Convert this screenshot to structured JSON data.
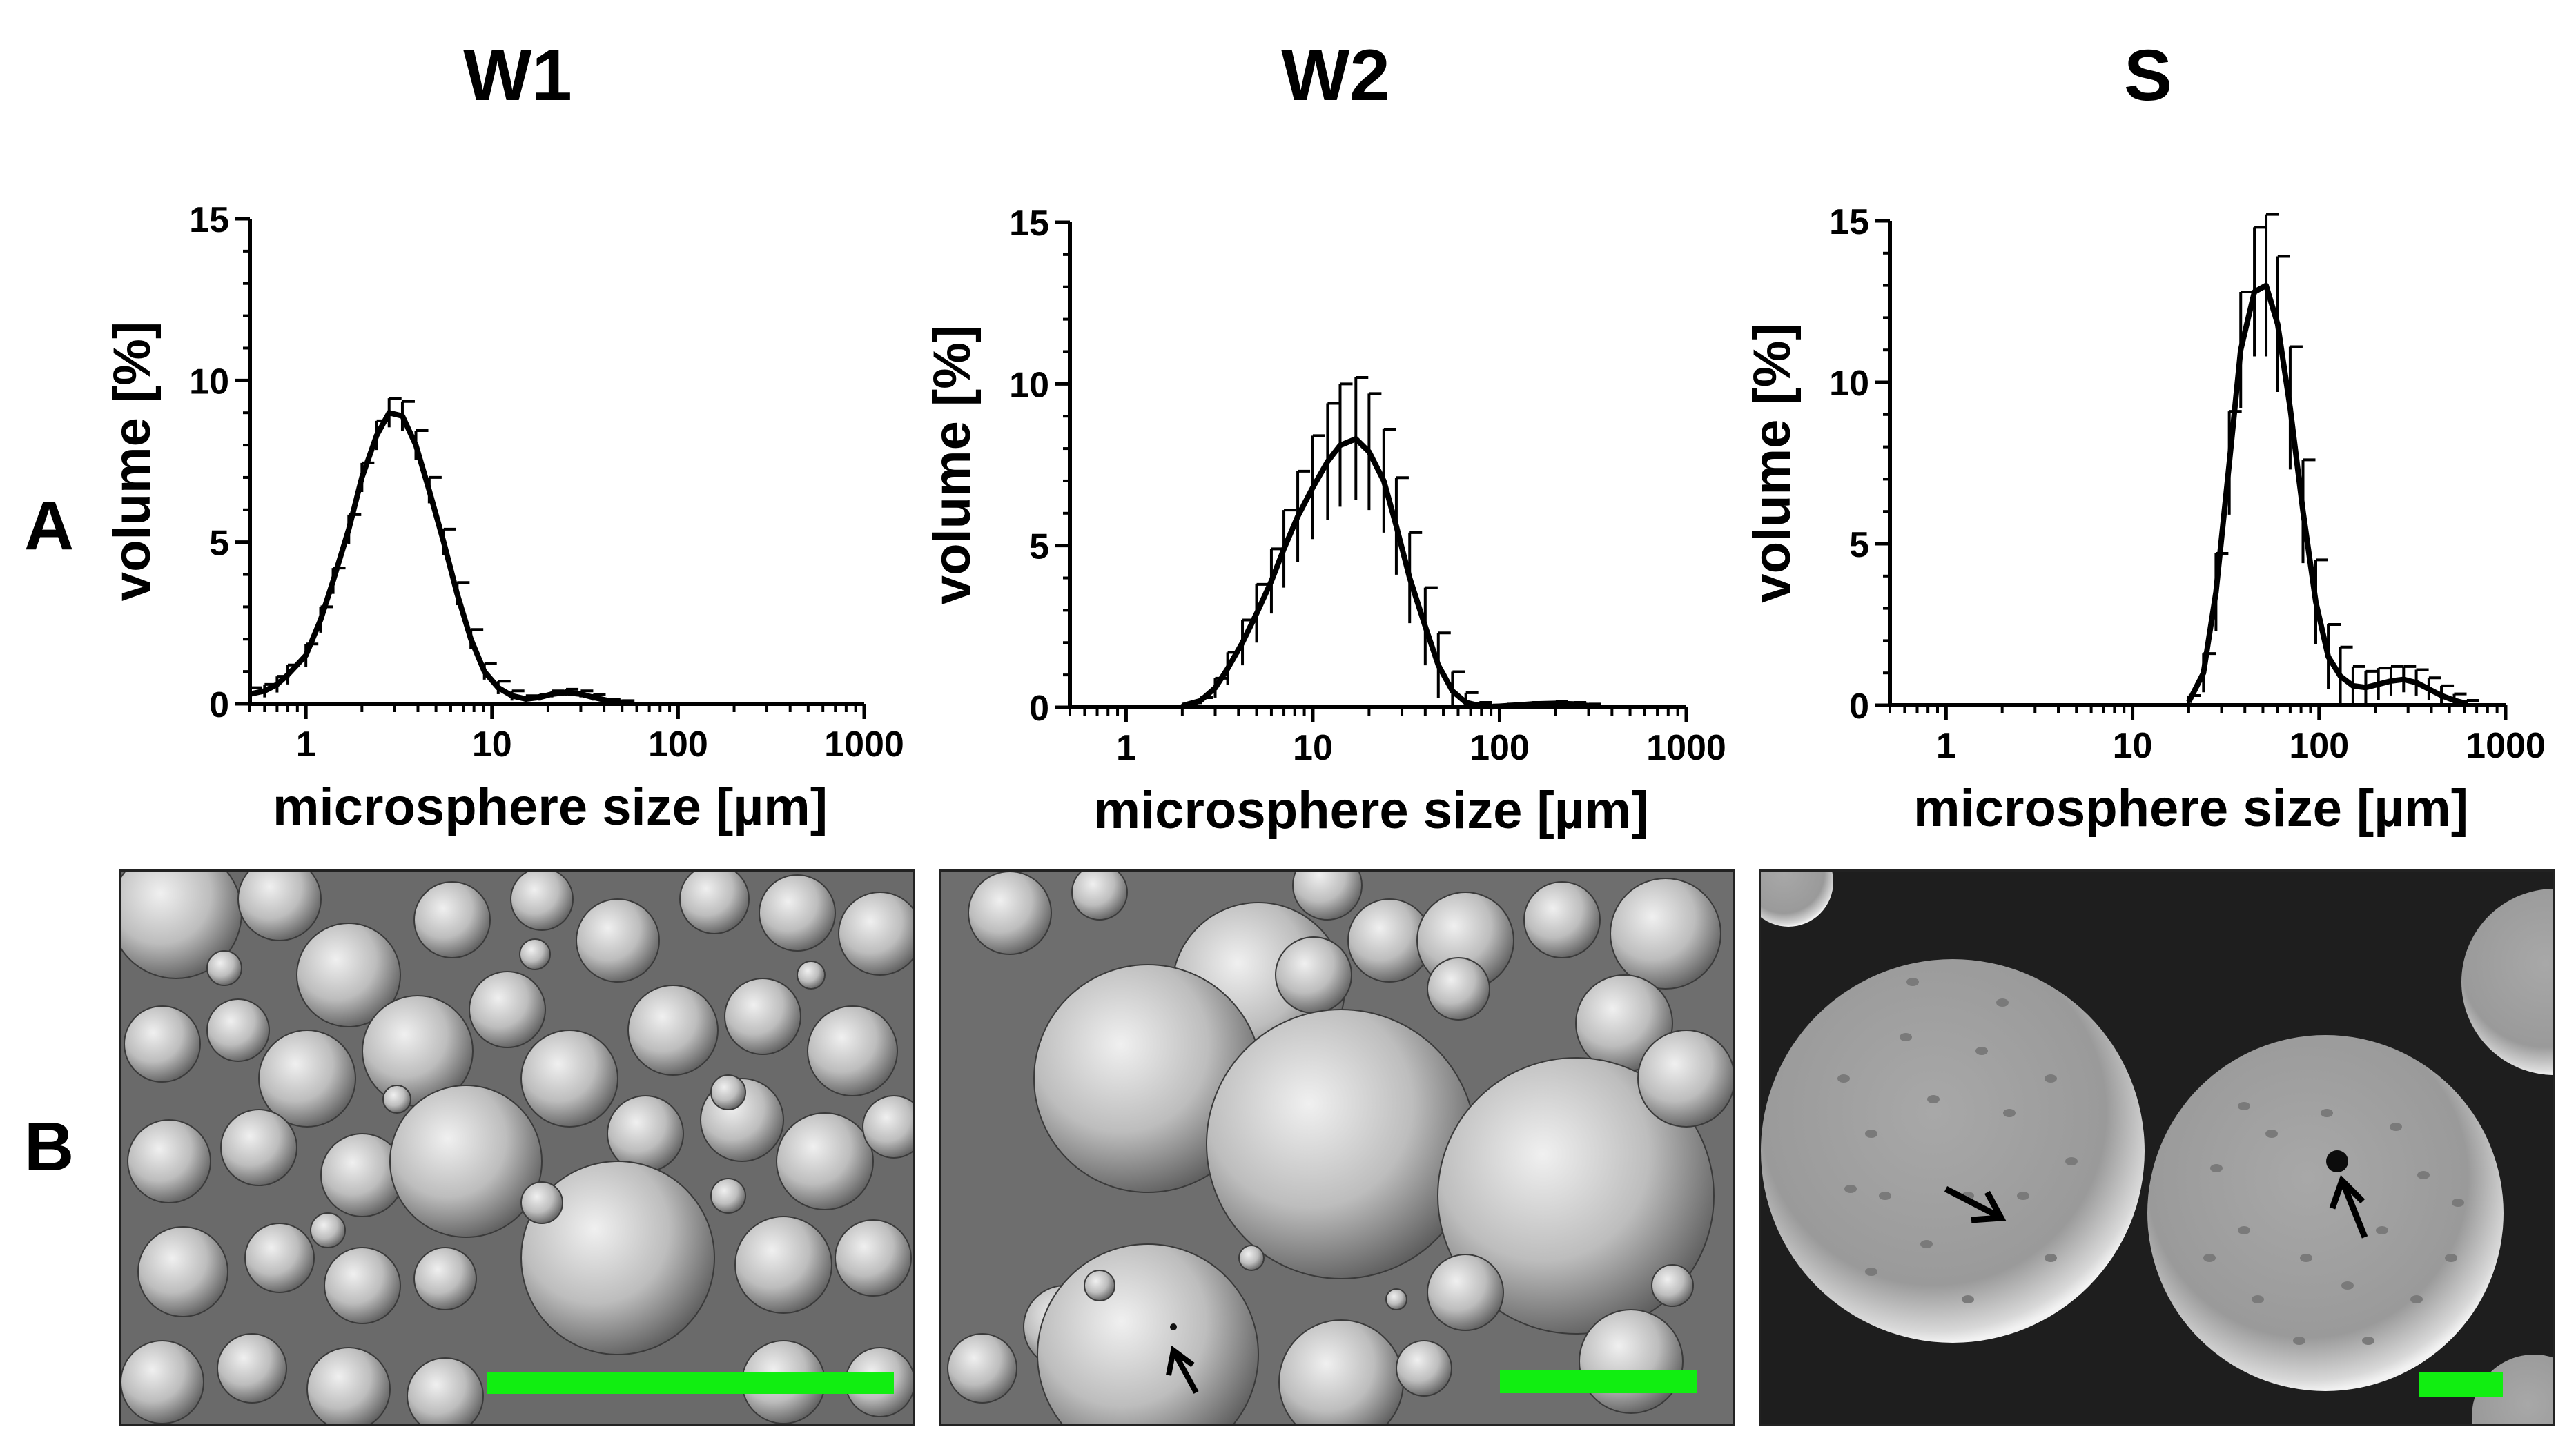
{
  "columns": [
    {
      "title": "W1"
    },
    {
      "title": "W2"
    },
    {
      "title": "S"
    }
  ],
  "row_labels": {
    "a": "A",
    "b": "B"
  },
  "chart_data": [
    {
      "type": "line",
      "panel": "A-W1",
      "xlabel": "microsphere size [µm]",
      "ylabel": "volume [%]",
      "xscale": "log",
      "xlim": [
        0.5,
        1000
      ],
      "ylim": [
        0,
        15
      ],
      "x_tick_labels": [
        "1",
        "10",
        "100",
        "1000"
      ],
      "y_tick_labels": [
        "0",
        "5",
        "10",
        "15"
      ],
      "grid": false,
      "error_bars": true,
      "x": [
        0.5,
        0.6,
        0.7,
        0.8,
        1.0,
        1.2,
        1.4,
        1.7,
        2.0,
        2.4,
        2.8,
        3.3,
        3.9,
        4.6,
        5.5,
        6.5,
        7.7,
        9.1,
        10.8,
        12.8,
        15.2,
        18,
        21,
        25,
        30,
        35,
        42,
        50
      ],
      "y": [
        0.3,
        0.4,
        0.6,
        0.9,
        1.5,
        2.6,
        3.8,
        5.4,
        7.0,
        8.3,
        9.0,
        8.9,
        8.0,
        6.6,
        5.0,
        3.4,
        2.0,
        1.0,
        0.5,
        0.25,
        0.15,
        0.2,
        0.3,
        0.35,
        0.3,
        0.2,
        0.1,
        0.05
      ],
      "err": [
        0.2,
        0.2,
        0.25,
        0.3,
        0.35,
        0.4,
        0.4,
        0.45,
        0.45,
        0.45,
        0.45,
        0.45,
        0.45,
        0.4,
        0.4,
        0.35,
        0.3,
        0.25,
        0.2,
        0.15,
        0.1,
        0.1,
        0.1,
        0.1,
        0.1,
        0.1,
        0.05,
        0.05
      ]
    },
    {
      "type": "line",
      "panel": "A-W2",
      "xlabel": "microsphere size [µm]",
      "ylabel": "volume [%]",
      "xscale": "log",
      "xlim": [
        0.5,
        1000
      ],
      "ylim": [
        0,
        15
      ],
      "x_tick_labels": [
        "1",
        "10",
        "100",
        "1000"
      ],
      "y_tick_labels": [
        "0",
        "5",
        "10",
        "15"
      ],
      "grid": false,
      "error_bars": true,
      "x": [
        2.0,
        2.5,
        3.0,
        3.5,
        4.2,
        5.0,
        6.0,
        7.0,
        8.3,
        10,
        12,
        14,
        17,
        20,
        24,
        28,
        33,
        40,
        47,
        56,
        66,
        78,
        92,
        110,
        150,
        200,
        250,
        300
      ],
      "y": [
        0.05,
        0.2,
        0.6,
        1.2,
        2.0,
        2.9,
        3.9,
        4.9,
        5.9,
        6.8,
        7.6,
        8.1,
        8.3,
        7.9,
        7.0,
        5.6,
        4.0,
        2.5,
        1.3,
        0.5,
        0.15,
        0.05,
        0.02,
        0.05,
        0.1,
        0.12,
        0.1,
        0.05
      ],
      "err": [
        0.05,
        0.1,
        0.3,
        0.5,
        0.7,
        0.9,
        1.0,
        1.2,
        1.4,
        1.6,
        1.8,
        1.9,
        1.9,
        1.8,
        1.6,
        1.5,
        1.4,
        1.2,
        1.0,
        0.6,
        0.3,
        0.1,
        0.05,
        0.05,
        0.05,
        0.05,
        0.05,
        0.05
      ]
    },
    {
      "type": "line",
      "panel": "A-S",
      "xlabel": "microsphere size [µm]",
      "ylabel": "volume [%]",
      "xscale": "log",
      "xlim": [
        0.5,
        1000
      ],
      "ylim": [
        0,
        15
      ],
      "x_tick_labels": [
        "1",
        "10",
        "100",
        "1000"
      ],
      "y_tick_labels": [
        "0",
        "5",
        "10",
        "15"
      ],
      "grid": false,
      "error_bars": true,
      "x": [
        20,
        24,
        28,
        33,
        38,
        45,
        52,
        60,
        70,
        82,
        96,
        112,
        130,
        152,
        178,
        208,
        243,
        284,
        332,
        388,
        453,
        530,
        620
      ],
      "y": [
        0.1,
        1.0,
        3.5,
        7.5,
        11.0,
        12.8,
        13.0,
        11.8,
        9.2,
        6.0,
        3.2,
        1.5,
        0.9,
        0.6,
        0.55,
        0.65,
        0.75,
        0.8,
        0.7,
        0.5,
        0.3,
        0.15,
        0.05
      ],
      "err": [
        0.2,
        0.6,
        1.2,
        1.6,
        1.8,
        2.0,
        2.2,
        2.1,
        1.9,
        1.6,
        1.3,
        1.0,
        0.9,
        0.6,
        0.5,
        0.5,
        0.45,
        0.4,
        0.4,
        0.35,
        0.3,
        0.2,
        0.1
      ]
    }
  ],
  "sem_images": [
    {
      "panel": "B-W1",
      "description_name": "sem-image-w1"
    },
    {
      "panel": "B-W2",
      "description_name": "sem-image-w2"
    },
    {
      "panel": "B-S",
      "description_name": "sem-image-s"
    }
  ],
  "colors": {
    "scale_bar": "#11ee11",
    "curve": "#000000"
  }
}
